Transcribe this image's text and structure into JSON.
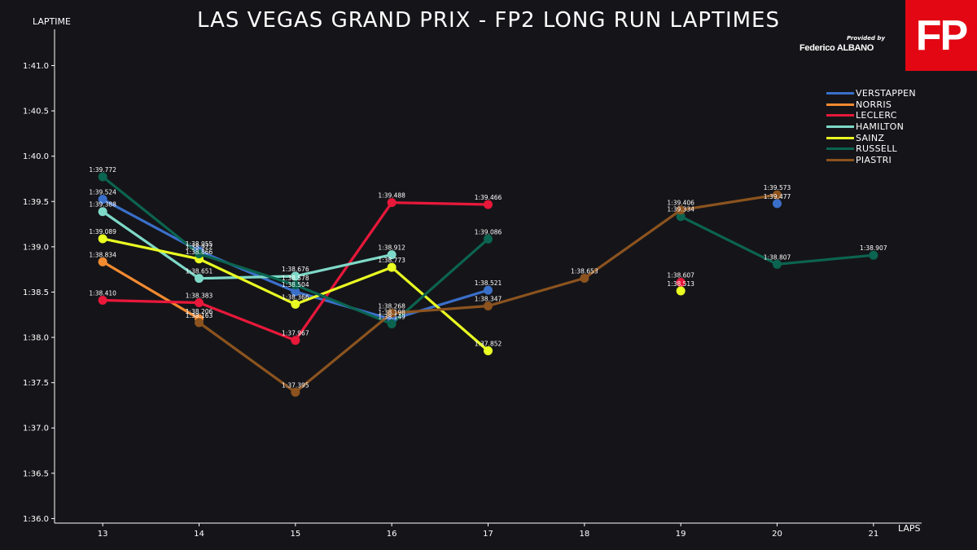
{
  "title": "LAS VEGAS GRAND PRIX - FP2 LONG RUN LAPTIMES",
  "logo_text": "FP",
  "credit_small": "Provided by",
  "credit_first": "Federico",
  "credit_last": "ALBANO",
  "colors": {
    "background": "#151519",
    "logo": "#e30613",
    "axis": "#ffffff"
  },
  "chart_data": {
    "type": "line",
    "title": "LAS VEGAS GRAND PRIX - FP2 LONG RUN LAPTIMES",
    "xlabel": "LAPS",
    "ylabel": "LAPTIME",
    "x_ticks": [
      "13",
      "14",
      "15",
      "16",
      "17",
      "18",
      "19",
      "20",
      "21"
    ],
    "xlim": [
      12.5,
      21.5
    ],
    "y_ticks": [
      {
        "v": 96.0,
        "label": "1:36.0"
      },
      {
        "v": 96.5,
        "label": "1:36.5"
      },
      {
        "v": 97.0,
        "label": "1:37.0"
      },
      {
        "v": 97.5,
        "label": "1:37.5"
      },
      {
        "v": 98.0,
        "label": "1:38.0"
      },
      {
        "v": 98.5,
        "label": "1:38.5"
      },
      {
        "v": 99.0,
        "label": "1:39.0"
      },
      {
        "v": 99.5,
        "label": "1:39.5"
      },
      {
        "v": 100.0,
        "label": "1:40.0"
      },
      {
        "v": 100.5,
        "label": "1:40.5"
      },
      {
        "v": 101.0,
        "label": "1:41.0"
      }
    ],
    "ylim": [
      95.95,
      101.4
    ],
    "grid": false,
    "legend_position": "top-right",
    "series": [
      {
        "name": "VERSTAPPEN",
        "color": "#3a6fc9",
        "points": [
          {
            "x": 13,
            "y": 99.524,
            "label": "1:39.524"
          },
          {
            "x": 14,
            "y": 98.955,
            "label": "1:38.955"
          },
          {
            "x": 15,
            "y": 98.504,
            "label": "1:38.504"
          },
          {
            "x": 16,
            "y": 98.198,
            "label": "1:38.198"
          },
          {
            "x": 17,
            "y": 98.521,
            "label": "1:38.521"
          }
        ],
        "extra": [
          {
            "x": 20,
            "y": 99.477,
            "label": "1:39.477"
          }
        ]
      },
      {
        "name": "NORRIS",
        "color": "#f28a30",
        "points": [
          {
            "x": 13,
            "y": 98.834,
            "label": "1:38.834"
          },
          {
            "x": 14,
            "y": 98.206,
            "label": "1:38.206"
          }
        ],
        "extra": []
      },
      {
        "name": "LECLERC",
        "color": "#e8183a",
        "points": [
          {
            "x": 13,
            "y": 98.41,
            "label": "1:38.410"
          },
          {
            "x": 14,
            "y": 98.383,
            "label": "1:38.383"
          },
          {
            "x": 15,
            "y": 97.967,
            "label": "1:37.967"
          },
          {
            "x": 16,
            "y": 99.488,
            "label": "1:39.488"
          },
          {
            "x": 17,
            "y": 99.466,
            "label": "1:39.466"
          }
        ],
        "extra": [
          {
            "x": 19,
            "y": 98.607,
            "label": "1:38.607"
          }
        ]
      },
      {
        "name": "HAMILTON",
        "color": "#7fd9c8",
        "points": [
          {
            "x": 13,
            "y": 99.388,
            "label": "1:39.388"
          },
          {
            "x": 14,
            "y": 98.651,
            "label": "1:38.651"
          },
          {
            "x": 15,
            "y": 98.676,
            "label": "1:38.676"
          },
          {
            "x": 16,
            "y": 98.912,
            "label": "1:38.912"
          }
        ],
        "extra": []
      },
      {
        "name": "SAINZ",
        "color": "#eaff22",
        "points": [
          {
            "x": 13,
            "y": 99.089,
            "label": "1:39.089"
          },
          {
            "x": 14,
            "y": 98.866,
            "label": "1:38.866"
          },
          {
            "x": 15,
            "y": 98.366,
            "label": "1:38.366"
          },
          {
            "x": 16,
            "y": 98.773,
            "label": "1:38.773"
          },
          {
            "x": 17,
            "y": 97.852,
            "label": "1:37.852"
          }
        ],
        "extra": [
          {
            "x": 19,
            "y": 98.513,
            "label": "1:38.513"
          }
        ]
      },
      {
        "name": "RUSSELL",
        "color": "#0b6450",
        "points": [
          {
            "x": 13,
            "y": 99.772,
            "label": "1:39.772"
          },
          {
            "x": 14,
            "y": 98.922,
            "label": "1:38.922"
          },
          {
            "x": 15,
            "y": 98.578,
            "label": "1:38.578"
          },
          {
            "x": 16,
            "y": 98.149,
            "label": "1:38.149"
          },
          {
            "x": 17,
            "y": 99.086,
            "label": "1:39.086"
          }
        ],
        "extra_line": [
          {
            "x": 19,
            "y": 99.334,
            "label": "1:39.334"
          },
          {
            "x": 20,
            "y": 98.807,
            "label": "1:38.807"
          },
          {
            "x": 21,
            "y": 98.907,
            "label": "1:38.907"
          }
        ]
      },
      {
        "name": "PIASTRI",
        "color": "#8c531e",
        "points": [
          {
            "x": 14,
            "y": 98.163,
            "label": "1:38.163"
          },
          {
            "x": 15,
            "y": 97.395,
            "label": "1:37.395"
          },
          {
            "x": 16,
            "y": 98.268,
            "label": "1:38.268"
          },
          {
            "x": 17,
            "y": 98.347,
            "label": "1:38.347"
          },
          {
            "x": 18,
            "y": 98.653,
            "label": "1:38.653"
          },
          {
            "x": 19,
            "y": 99.406,
            "label": "1:39.406"
          },
          {
            "x": 20,
            "y": 99.573,
            "label": "1:39.573"
          }
        ],
        "extra": []
      }
    ]
  }
}
